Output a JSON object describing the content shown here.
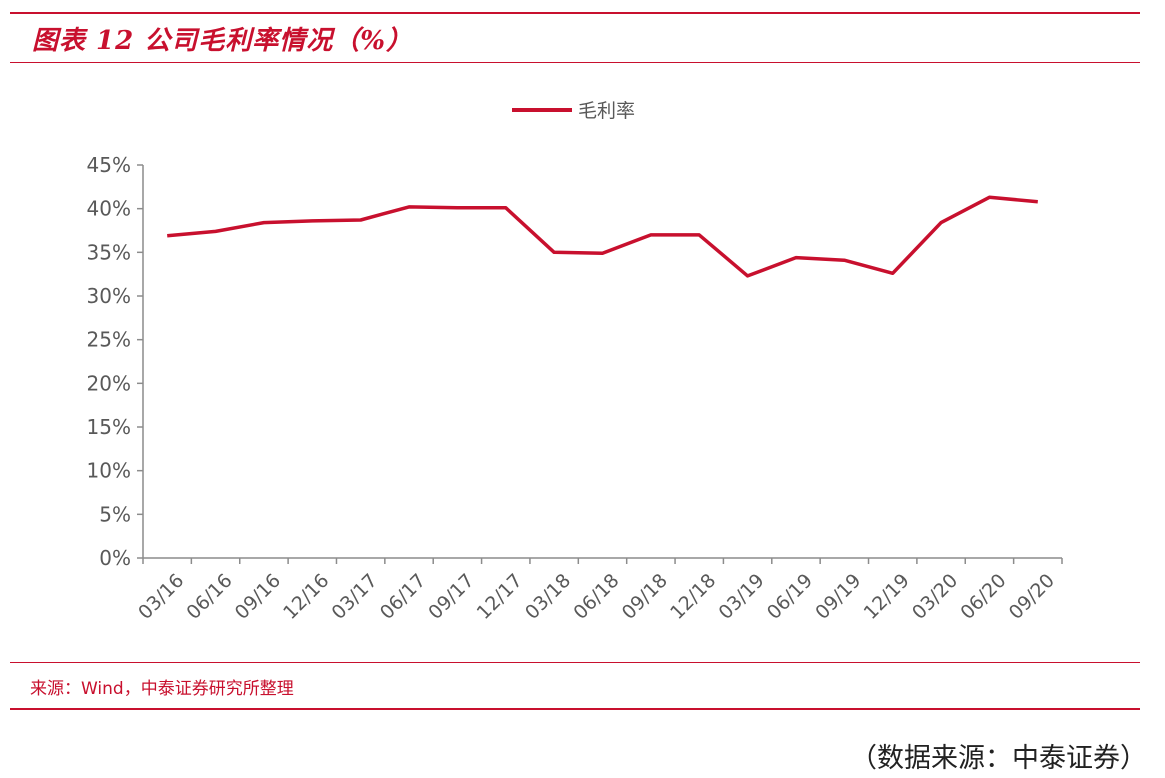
{
  "header": {
    "title": "图表 12 公司毛利率情况（%）"
  },
  "footer": {
    "source": "来源：Wind，中泰证券研究所整理",
    "note": "（数据来源：中泰证券）"
  },
  "colors": {
    "accent": "#c8102e",
    "axis": "#8c8c8c",
    "text": "#595959"
  },
  "chart_data": {
    "type": "line",
    "title": "",
    "xlabel": "",
    "ylabel": "",
    "categories": [
      "03/16",
      "06/16",
      "09/16",
      "12/16",
      "03/17",
      "06/17",
      "09/17",
      "12/17",
      "03/18",
      "06/18",
      "09/18",
      "12/18",
      "03/19",
      "06/19",
      "09/19",
      "12/19",
      "03/20",
      "06/20",
      "09/20"
    ],
    "series": [
      {
        "name": "毛利率",
        "values": [
          36.9,
          37.4,
          38.4,
          38.6,
          38.7,
          40.2,
          40.1,
          40.1,
          35.0,
          34.9,
          37.0,
          37.0,
          32.3,
          34.4,
          34.1,
          32.6,
          38.4,
          41.3,
          40.8
        ]
      }
    ],
    "ylim": [
      0,
      45
    ],
    "y_ticks": [
      0,
      5,
      10,
      15,
      20,
      25,
      30,
      35,
      40,
      45
    ],
    "y_tick_labels": [
      "0%",
      "5%",
      "10%",
      "15%",
      "20%",
      "25%",
      "30%",
      "35%",
      "40%",
      "45%"
    ],
    "grid": false,
    "legend_position": "top-center"
  }
}
